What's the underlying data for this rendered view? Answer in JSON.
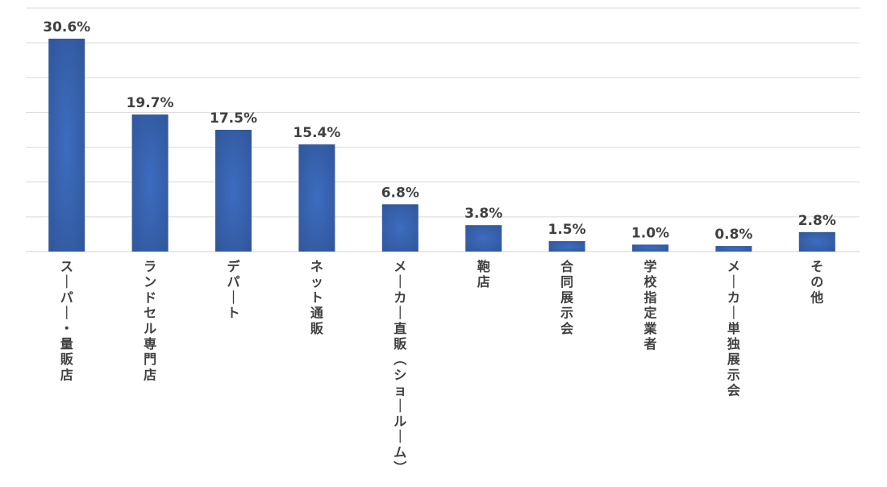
{
  "chart_data": {
    "type": "bar",
    "categories": [
      "スーパー・量販店",
      "ランドセル専門店",
      "デパート",
      "ネット通販",
      "メーカー直販（ショールーム）",
      "鞄店",
      "合同展示会",
      "学校指定業者",
      "メーカー単独展示会",
      "その他"
    ],
    "values": [
      30.6,
      19.7,
      17.5,
      15.4,
      6.8,
      3.8,
      1.5,
      1.0,
      0.8,
      2.8
    ],
    "value_labels": [
      "30.6%",
      "19.7%",
      "17.5%",
      "15.4%",
      "6.8%",
      "3.8%",
      "1.5%",
      "1.0%",
      "0.8%",
      "2.8%"
    ],
    "title": "",
    "xlabel": "",
    "ylabel": "",
    "ylim": [
      0,
      35
    ],
    "grid": true,
    "legend": "none",
    "bar_color": "#2f5597",
    "bar_highlight_color": "#3d6cc0",
    "grid_color": "#d9d9d9",
    "label_color": "#404040"
  }
}
